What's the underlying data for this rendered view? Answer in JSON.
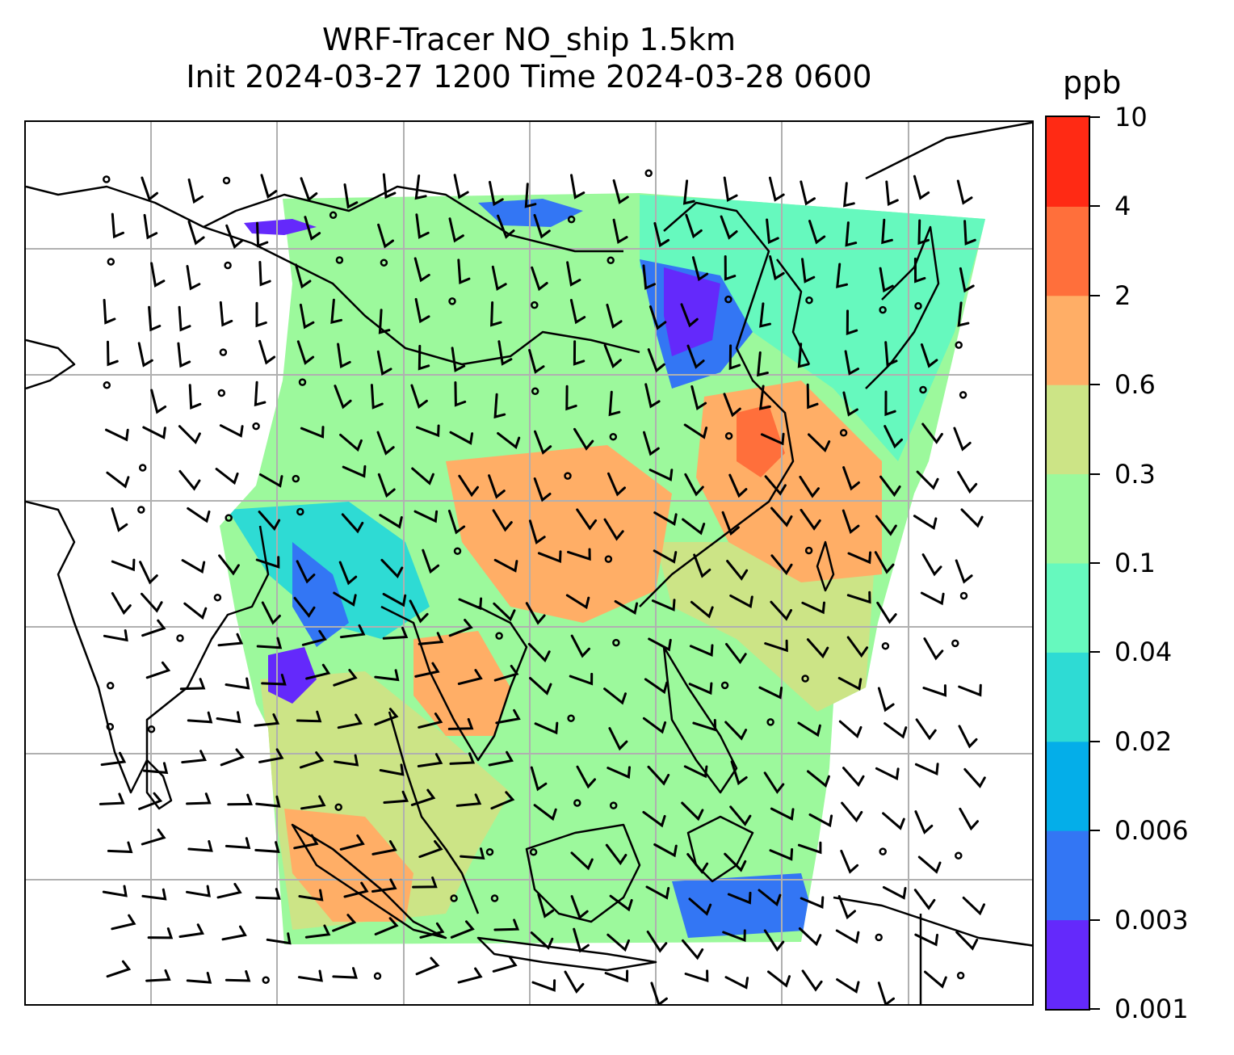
{
  "title": {
    "line1": "WRF-Tracer NO_ship 1.5km",
    "line2": "Init 2024-03-27 1200 Time 2024-03-28 0600"
  },
  "colorbar": {
    "unit": "ppb",
    "ticks": [
      "0.001",
      "0.003",
      "0.006",
      "0.02",
      "0.04",
      "0.1",
      "0.3",
      "0.6",
      "2",
      "4",
      "10"
    ],
    "colors": [
      "#6429fb",
      "#3376f4",
      "#04aee9",
      "#2edbd4",
      "#66f9be",
      "#9cf99c",
      "#cce486",
      "#ffae66",
      "#ff6f3b",
      "#ff2a14"
    ]
  },
  "colors": {
    "background": "#ffffff",
    "grid": "#b0b0b0",
    "coastline": "#000000",
    "wind_barb": "#000000"
  }
}
